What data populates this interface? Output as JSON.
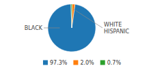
{
  "chart_data": {
    "type": "pie",
    "categories": [
      "97.3%",
      "2.0%",
      "0.7%"
    ],
    "values": [
      97.3,
      2.0,
      0.7
    ],
    "annotations": [
      "BLACK",
      "WHITE\nHISPANIC"
    ],
    "legend": "bottom"
  }
}
